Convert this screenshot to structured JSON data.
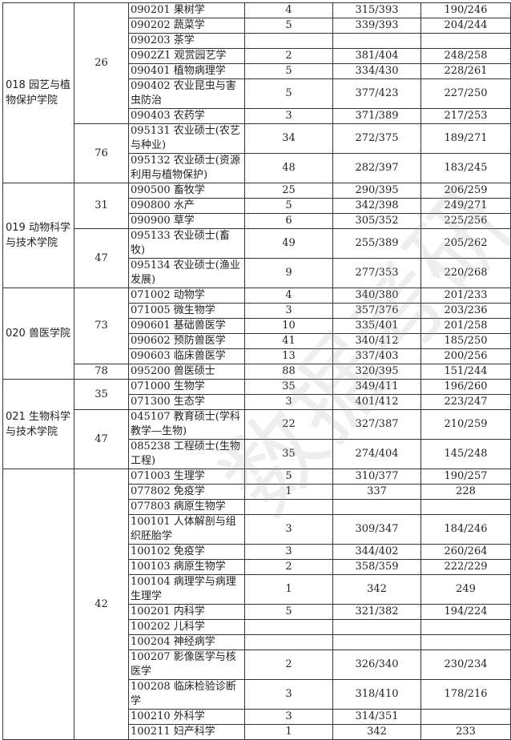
{
  "colleges": [
    {
      "name": "018 园艺与植物保护学院",
      "groups": [
        {
          "total": "26",
          "majors": [
            {
              "major": "090201 果树学",
              "count": "4",
              "score_a": "315/393",
              "score_b": "190/246"
            },
            {
              "major": "090202 蔬菜学",
              "count": "5",
              "score_a": "339/393",
              "score_b": "204/244"
            },
            {
              "major": "090203 茶学",
              "count": "",
              "score_a": "",
              "score_b": ""
            },
            {
              "major": "0902Z1 观赏园艺学",
              "count": "2",
              "score_a": "381/404",
              "score_b": "248/258"
            },
            {
              "major": "090401 植物病理学",
              "count": "5",
              "score_a": "334/430",
              "score_b": "228/261"
            },
            {
              "major": "090402 农业昆虫与害虫防治",
              "count": "5",
              "score_a": "377/423",
              "score_b": "227/250",
              "double": true
            },
            {
              "major": "090403 农药学",
              "count": "3",
              "score_a": "371/389",
              "score_b": "217/253"
            }
          ]
        },
        {
          "total": "76",
          "majors": [
            {
              "major": "095131 农业硕士(农艺与种业)",
              "count": "34",
              "score_a": "272/375",
              "score_b": "189/271",
              "double": true
            },
            {
              "major": "095132 农业硕士(资源利用与植物保护)",
              "count": "48",
              "score_a": "282/397",
              "score_b": "183/245",
              "double": true
            }
          ]
        }
      ]
    },
    {
      "name": "019 动物科学与技术学院",
      "groups": [
        {
          "total": "31",
          "majors": [
            {
              "major": "090500 畜牧学",
              "count": "25",
              "score_a": "290/395",
              "score_b": "206/259"
            },
            {
              "major": "090800 水产",
              "count": "5",
              "score_a": "342/398",
              "score_b": "249/271"
            },
            {
              "major": "090900 草学",
              "count": "6",
              "score_a": "305/352",
              "score_b": "225/256"
            }
          ]
        },
        {
          "total": "47",
          "majors": [
            {
              "major": "095133 农业硕士(畜牧)",
              "count": "49",
              "score_a": "255/389",
              "score_b": "205/262",
              "double": true
            },
            {
              "major": "095134 农业硕士(渔业发展)",
              "count": "9",
              "score_a": "277/353",
              "score_b": "220/268",
              "double": true
            }
          ]
        }
      ]
    },
    {
      "name": "020 兽医学院",
      "groups": [
        {
          "total": "73",
          "majors": [
            {
              "major": "071002 动物学",
              "count": "4",
              "score_a": "340/380",
              "score_b": "201/233"
            },
            {
              "major": "071005 微生物学",
              "count": "3",
              "score_a": "357/376",
              "score_b": "203/236"
            },
            {
              "major": "090601 基础兽医学",
              "count": "10",
              "score_a": "335/401",
              "score_b": "201/258"
            },
            {
              "major": "090602 预防兽医学",
              "count": "41",
              "score_a": "340/412",
              "score_b": "185/250"
            },
            {
              "major": "090603 临床兽医学",
              "count": "13",
              "score_a": "337/403",
              "score_b": "200/256"
            }
          ]
        },
        {
          "total": "78",
          "majors": [
            {
              "major": "095200 兽医硕士",
              "count": "88",
              "score_a": "320/395",
              "score_b": "151/244"
            }
          ]
        }
      ]
    },
    {
      "name": "021 生物科学与技术学院",
      "groups": [
        {
          "total": "35",
          "majors": [
            {
              "major": "071000 生物学",
              "count": "35",
              "score_a": "349/411",
              "score_b": "196/260"
            },
            {
              "major": "071300 生态学",
              "count": "3",
              "score_a": "401/412",
              "score_b": "223/247"
            }
          ]
        },
        {
          "total": "47",
          "majors": [
            {
              "major": "045107 教育硕士(学科教学—生物)",
              "count": "22",
              "score_a": "327/387",
              "score_b": "210/259",
              "double": true
            },
            {
              "major": "085238 工程硕士(生物工程)",
              "count": "35",
              "score_a": "274/404",
              "score_b": "145/248",
              "double": true
            }
          ]
        }
      ]
    },
    {
      "name": "",
      "groups": [
        {
          "total": "42",
          "majors": [
            {
              "major": "071003 生理学",
              "count": "5",
              "score_a": "310/377",
              "score_b": "190/257"
            },
            {
              "major": "077802 免疫学",
              "count": "1",
              "score_a": "337",
              "score_b": "228"
            },
            {
              "major": "077803 病原生物学",
              "count": "",
              "score_a": "",
              "score_b": ""
            },
            {
              "major": "100101 人体解剖与组织胚胎学",
              "count": "3",
              "score_a": "309/347",
              "score_b": "184/246",
              "double": true
            },
            {
              "major": "100102 免疫学",
              "count": "3",
              "score_a": "344/402",
              "score_b": "260/264"
            },
            {
              "major": "100103 病原生物学",
              "count": "2",
              "score_a": "358/359",
              "score_b": "222/229"
            },
            {
              "major": "100104 病理学与病理生理学",
              "count": "1",
              "score_a": "342",
              "score_b": "249",
              "double": true
            },
            {
              "major": "100201 内科学",
              "count": "5",
              "score_a": "321/382",
              "score_b": "194/224"
            },
            {
              "major": "100202 儿科学",
              "count": "",
              "score_a": "",
              "score_b": ""
            },
            {
              "major": "100204 神经病学",
              "count": "",
              "score_a": "",
              "score_b": ""
            },
            {
              "major": "100207 影像医学与核医学",
              "count": "2",
              "score_a": "326/340",
              "score_b": "230/234",
              "double": true
            },
            {
              "major": "100208 临床检验诊断学",
              "count": "3",
              "score_a": "318/410",
              "score_b": "178/216",
              "double": true
            },
            {
              "major": "100210 外科学",
              "count": "3",
              "score_a": "314/351",
              "score_b": ""
            },
            {
              "major": "100211 妇产科学",
              "count": "1",
              "score_a": "342",
              "score_b": "233"
            }
          ]
        }
      ]
    }
  ]
}
